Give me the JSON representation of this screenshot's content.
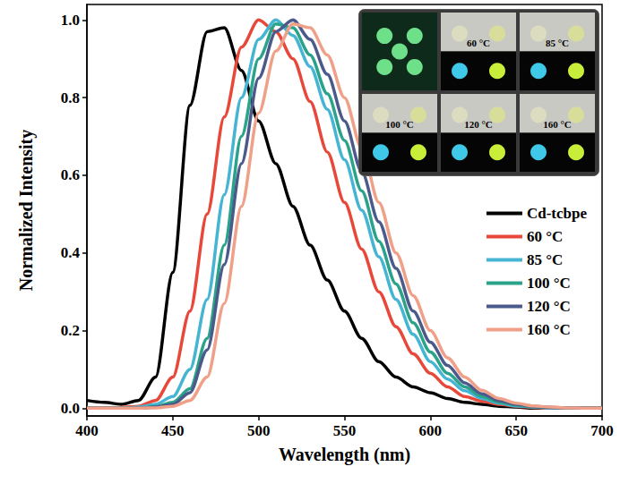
{
  "chart_data": {
    "type": "line",
    "x_label": "Wavelength (nm)",
    "y_label": "Normalized Intensity",
    "x": [
      400,
      410,
      420,
      430,
      440,
      450,
      460,
      470,
      480,
      490,
      500,
      510,
      520,
      530,
      540,
      550,
      560,
      570,
      580,
      590,
      600,
      610,
      620,
      630,
      640,
      650,
      660,
      670,
      680,
      690,
      700
    ],
    "series": [
      {
        "name": "Cd-tcbpe",
        "color": "#000000",
        "values": [
          0.02,
          0.015,
          0.01,
          0.02,
          0.08,
          0.35,
          0.78,
          0.97,
          0.98,
          0.87,
          0.74,
          0.63,
          0.52,
          0.42,
          0.33,
          0.25,
          0.18,
          0.12,
          0.08,
          0.055,
          0.04,
          0.025,
          0.015,
          0.01,
          0.005,
          0.003,
          0,
          0,
          0,
          0,
          0
        ]
      },
      {
        "name": "60 °C",
        "color": "#e8483a",
        "values": [
          0,
          0,
          0.002,
          0.005,
          0.02,
          0.08,
          0.25,
          0.5,
          0.75,
          0.93,
          1.0,
          0.97,
          0.9,
          0.79,
          0.66,
          0.53,
          0.41,
          0.3,
          0.21,
          0.14,
          0.09,
          0.055,
          0.03,
          0.018,
          0.01,
          0.005,
          0.002,
          0,
          0,
          0,
          0
        ]
      },
      {
        "name": "85 °C",
        "color": "#45b5d3",
        "values": [
          0,
          0,
          0,
          0.003,
          0.01,
          0.03,
          0.1,
          0.28,
          0.55,
          0.8,
          0.95,
          1.0,
          0.96,
          0.88,
          0.77,
          0.64,
          0.51,
          0.39,
          0.28,
          0.19,
          0.12,
          0.075,
          0.045,
          0.025,
          0.013,
          0.006,
          0.003,
          0.001,
          0,
          0,
          0
        ]
      },
      {
        "name": "100 °C",
        "color": "#2aa38a",
        "values": [
          0,
          0,
          0,
          0,
          0.004,
          0.015,
          0.05,
          0.18,
          0.42,
          0.7,
          0.9,
          0.99,
          0.98,
          0.91,
          0.81,
          0.69,
          0.56,
          0.43,
          0.32,
          0.22,
          0.145,
          0.09,
          0.055,
          0.03,
          0.016,
          0.008,
          0.004,
          0.002,
          0.001,
          0,
          0
        ]
      },
      {
        "name": "120 °C",
        "color": "#4b5a8a",
        "values": [
          0,
          0,
          0,
          0,
          0.003,
          0.01,
          0.04,
          0.15,
          0.37,
          0.63,
          0.85,
          0.97,
          1.0,
          0.95,
          0.86,
          0.74,
          0.61,
          0.48,
          0.36,
          0.25,
          0.17,
          0.11,
          0.065,
          0.037,
          0.02,
          0.01,
          0.005,
          0.002,
          0.001,
          0,
          0
        ]
      },
      {
        "name": "160 °C",
        "color": "#f0a088",
        "values": [
          0,
          0,
          0,
          0,
          0.001,
          0.005,
          0.02,
          0.08,
          0.27,
          0.52,
          0.76,
          0.92,
          0.99,
          0.98,
          0.91,
          0.8,
          0.67,
          0.53,
          0.4,
          0.29,
          0.2,
          0.13,
          0.08,
          0.046,
          0.025,
          0.013,
          0.006,
          0.003,
          0.001,
          0,
          0
        ]
      }
    ],
    "xlim": [
      400,
      700
    ],
    "xticks": [
      400,
      450,
      500,
      550,
      600,
      650,
      700
    ],
    "ylim": [
      -0.02,
      1.04
    ],
    "yticks": [
      {
        "value": 0,
        "label": "0.0"
      },
      0.2,
      0.4,
      0.6,
      0.8,
      {
        "value": 1,
        "label": "1.0"
      }
    ],
    "grid": false,
    "legend": "right",
    "annotations": [
      "60 °C",
      "85 °C",
      "100 °C",
      "120 °C",
      "160 °C"
    ]
  }
}
